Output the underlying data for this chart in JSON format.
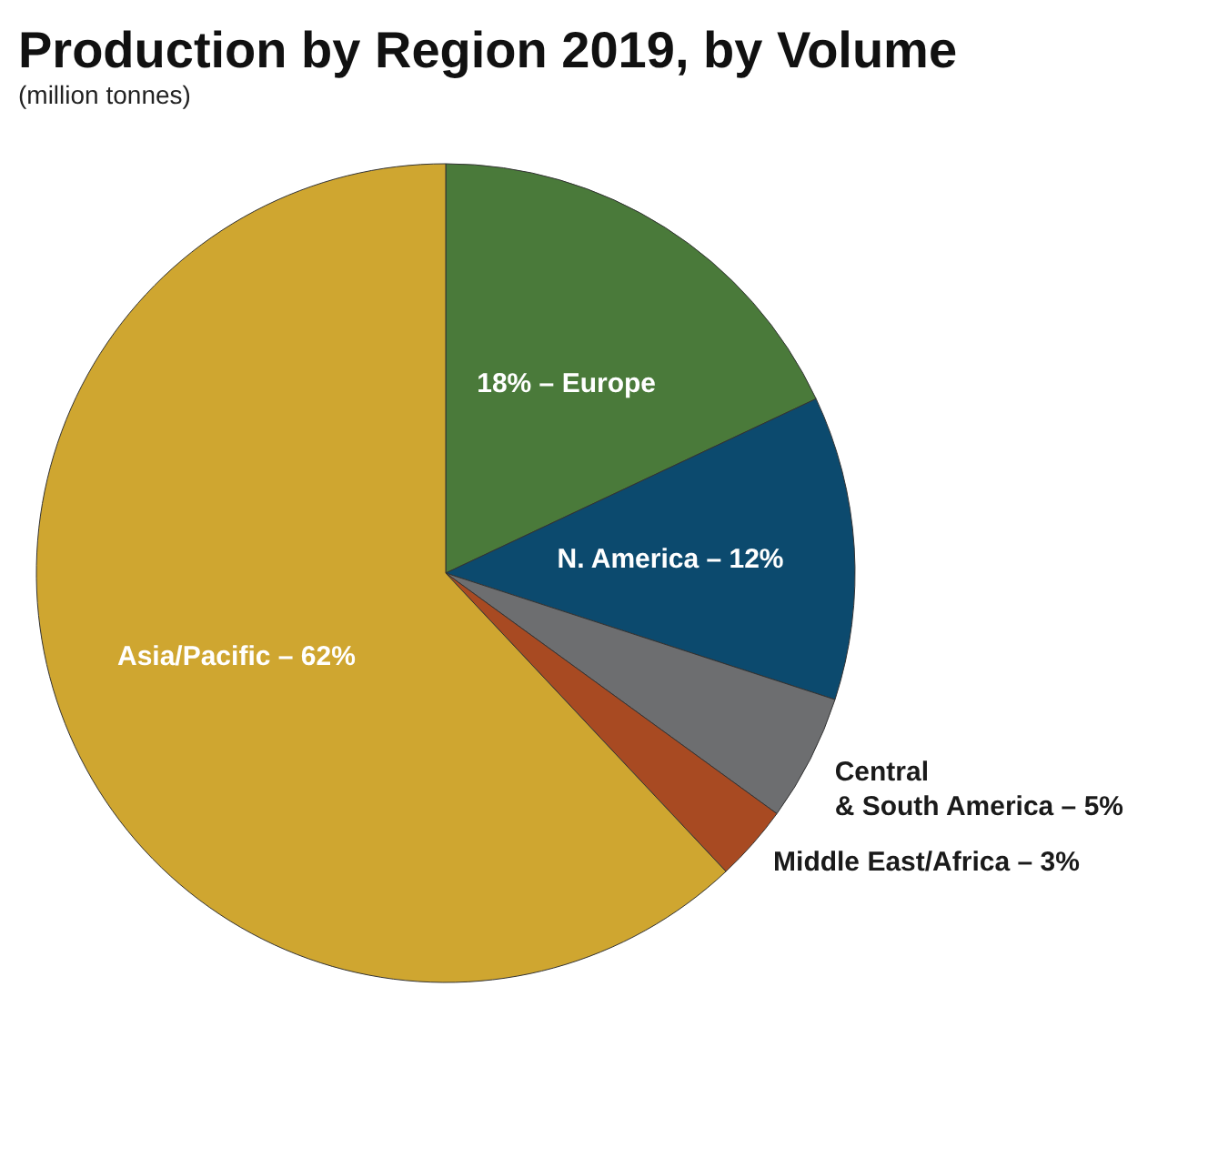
{
  "chart_data": {
    "type": "pie",
    "title": "Production by Region 2019, by Volume",
    "subtitle": "(million tonnes)",
    "categories": [
      "18% – Europe",
      "N. America – 12%",
      "Central\n& South America – 5%",
      "Middle East/Africa – 3%",
      "Asia/Pacific – 62%"
    ],
    "values": [
      18,
      12,
      5,
      3,
      62
    ],
    "colors": [
      "#4a7a3a",
      "#0c4a6e",
      "#6d6e70",
      "#a84a22",
      "#cfa630"
    ],
    "legend": false
  }
}
